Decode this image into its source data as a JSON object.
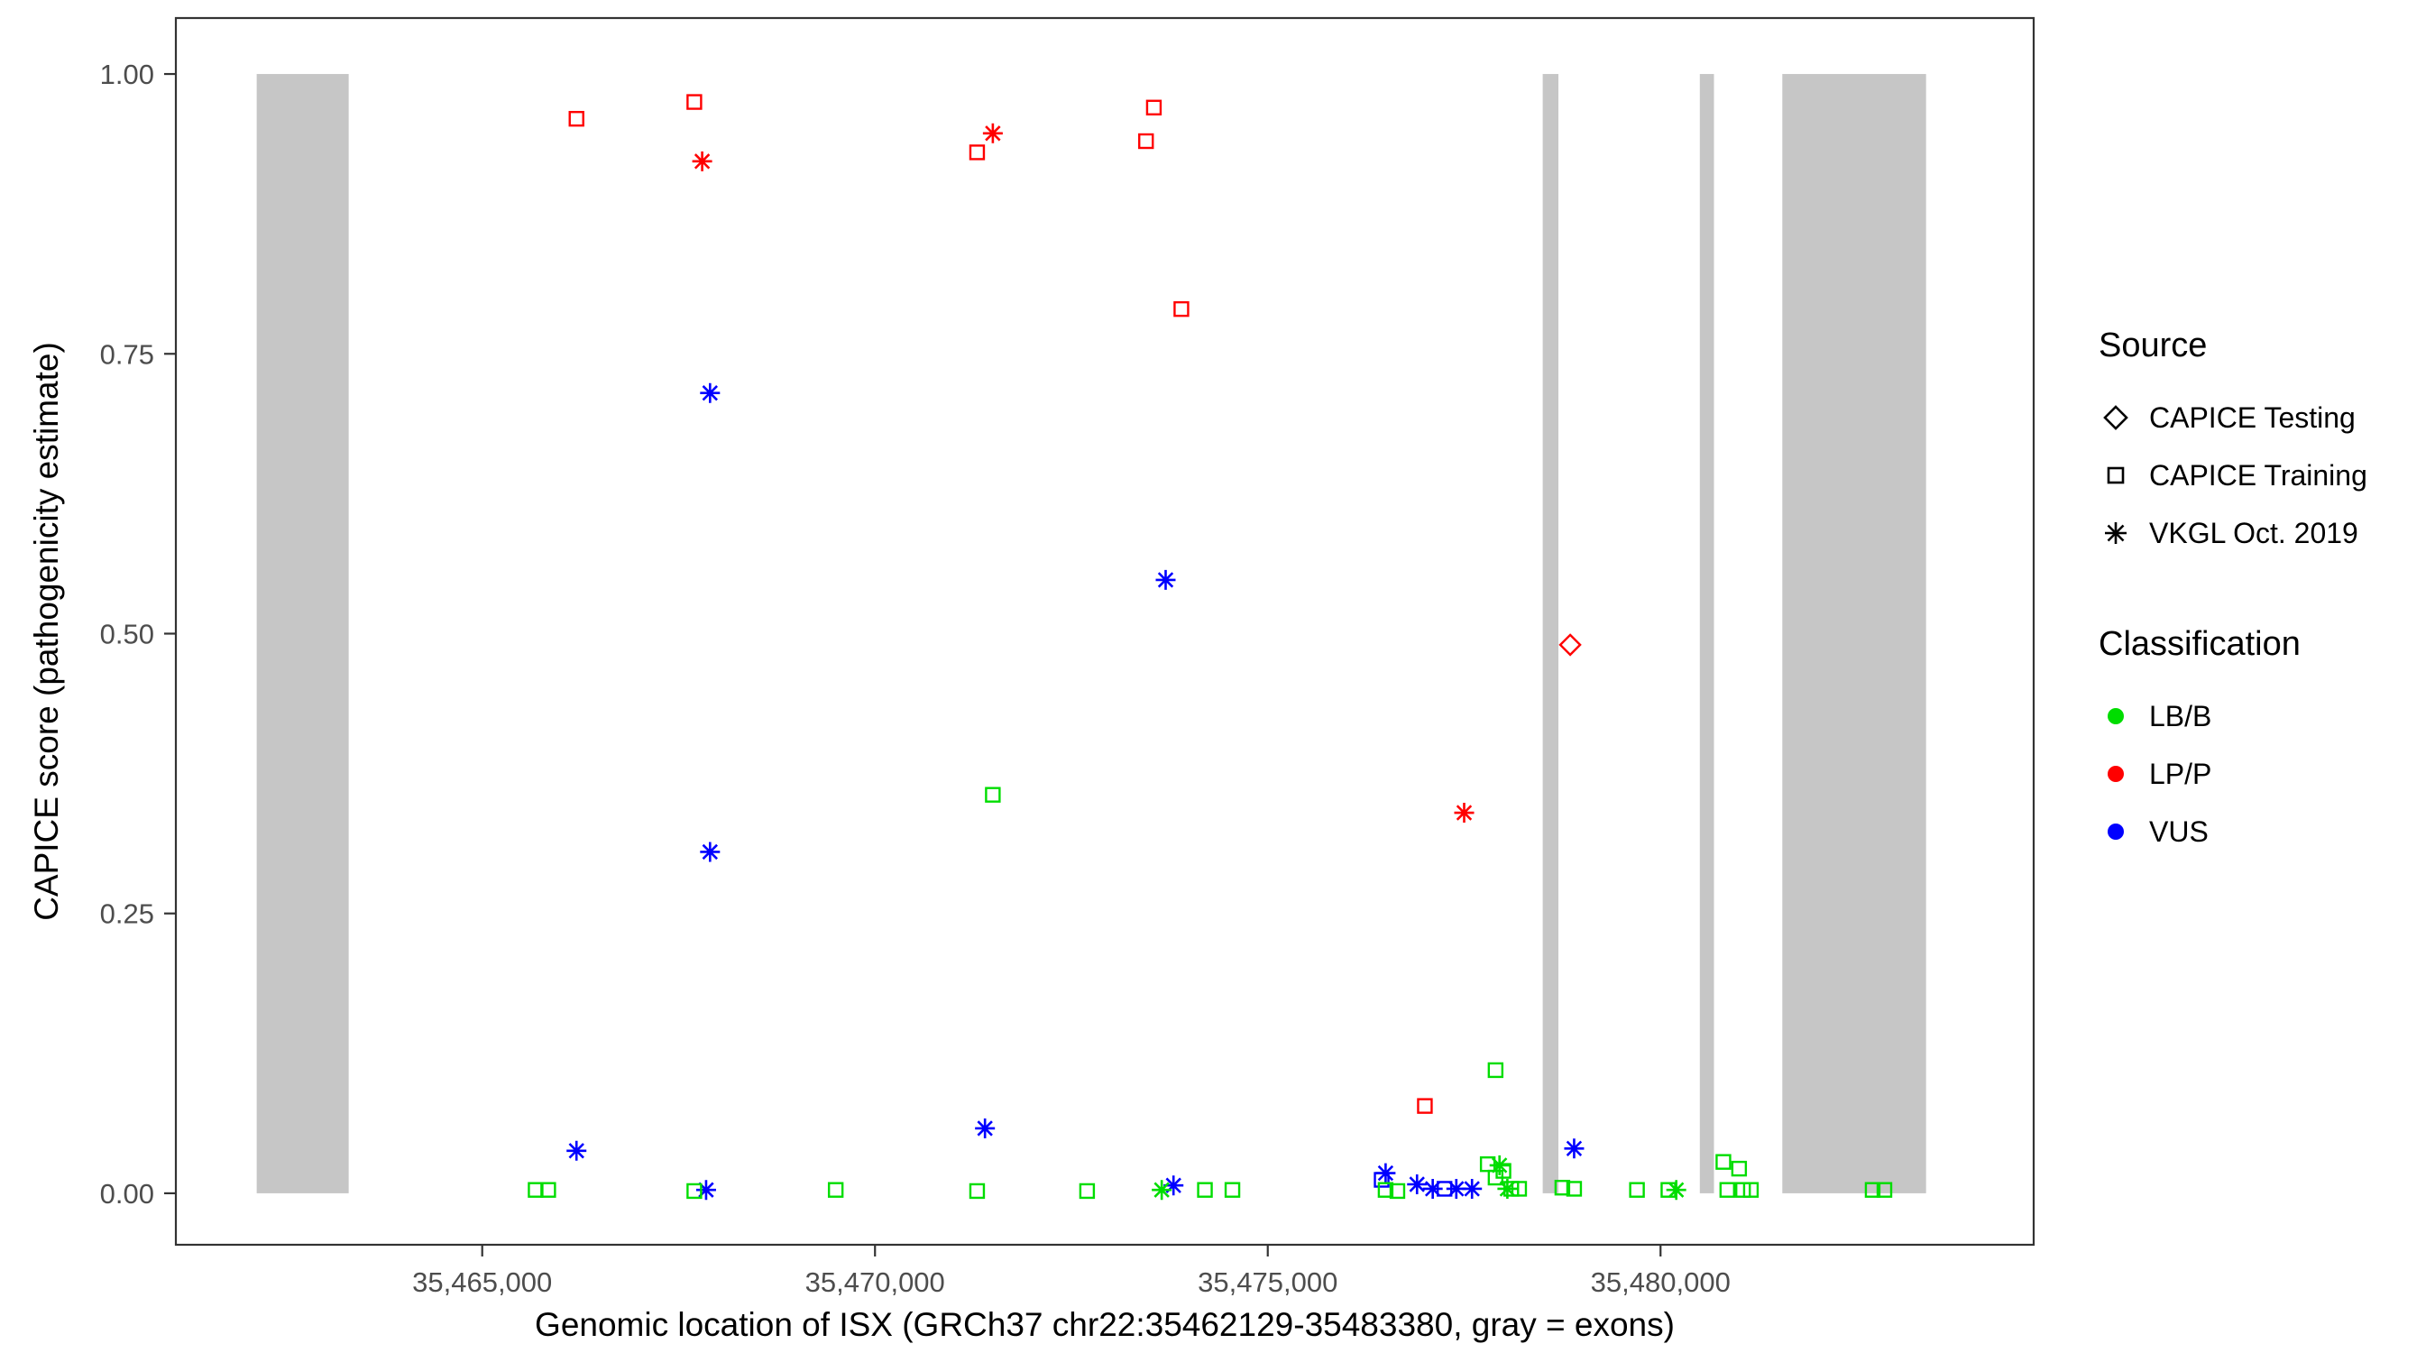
{
  "chart_data": {
    "type": "scatter",
    "title": "",
    "xlabel": "Genomic location of ISX (GRCh37 chr22:35462129-35483380, gray = exons)",
    "ylabel": "CAPICE score (pathogenicity estimate)",
    "xlim": [
      35461100,
      35484750
    ],
    "ylim": [
      -0.046,
      1.05
    ],
    "grid": "off",
    "legend_position": "right",
    "x_ticks": [
      {
        "value": 35465000,
        "label": "35,465,000"
      },
      {
        "value": 35470000,
        "label": "35,470,000"
      },
      {
        "value": 35475000,
        "label": "35,475,000"
      },
      {
        "value": 35480000,
        "label": "35,480,000"
      }
    ],
    "y_ticks": [
      {
        "value": 0.0,
        "label": "0.00"
      },
      {
        "value": 0.25,
        "label": "0.25"
      },
      {
        "value": 0.5,
        "label": "0.50"
      },
      {
        "value": 0.75,
        "label": "0.75"
      },
      {
        "value": 1.0,
        "label": "1.00"
      }
    ],
    "exon_color": "#c6c6c6",
    "exon_bands": [
      [
        35462129,
        35463300
      ],
      [
        35478500,
        35478700
      ],
      [
        35480500,
        35480680
      ],
      [
        35481550,
        35483380
      ]
    ],
    "series": [
      {
        "source": "CAPICE Testing",
        "classification": "LP/P",
        "marker": "diamond",
        "color": "#FF0000",
        "points": [
          [
            35478850,
            0.49
          ]
        ]
      },
      {
        "source": "CAPICE Training",
        "classification": "LP/P",
        "marker": "square",
        "color": "#FF0000",
        "points": [
          [
            35466200,
            0.96
          ],
          [
            35467700,
            0.975
          ],
          [
            35471300,
            0.93
          ],
          [
            35473450,
            0.94
          ],
          [
            35473550,
            0.97
          ],
          [
            35473900,
            0.79
          ],
          [
            35477000,
            0.078
          ]
        ]
      },
      {
        "source": "VKGL Oct. 2019",
        "classification": "LP/P",
        "marker": "asterisk",
        "color": "#FF0000",
        "points": [
          [
            35467800,
            0.922
          ],
          [
            35471500,
            0.947
          ],
          [
            35477500,
            0.34
          ]
        ]
      },
      {
        "source": "CAPICE Training",
        "classification": "VUS",
        "marker": "square",
        "color": "#0000FF",
        "points": [
          [
            35476450,
            0.012
          ],
          [
            35477250,
            0.004
          ]
        ]
      },
      {
        "source": "VKGL Oct. 2019",
        "classification": "VUS",
        "marker": "asterisk",
        "color": "#0000FF",
        "points": [
          [
            35467900,
            0.715
          ],
          [
            35473700,
            0.548
          ],
          [
            35467900,
            0.305
          ],
          [
            35466200,
            0.038
          ],
          [
            35471400,
            0.058
          ],
          [
            35467850,
            0.003
          ],
          [
            35478900,
            0.04
          ],
          [
            35476500,
            0.018
          ],
          [
            35476900,
            0.008
          ],
          [
            35477100,
            0.004
          ],
          [
            35477400,
            0.004
          ],
          [
            35477600,
            0.004
          ],
          [
            35473800,
            0.007
          ]
        ]
      },
      {
        "source": "CAPICE Training",
        "classification": "LB/B",
        "marker": "square",
        "color": "#00DD00",
        "points": [
          [
            35471500,
            0.356
          ],
          [
            35477900,
            0.11
          ],
          [
            35465680,
            0.003
          ],
          [
            35465840,
            0.003
          ],
          [
            35467700,
            0.002
          ],
          [
            35469500,
            0.003
          ],
          [
            35471300,
            0.002
          ],
          [
            35472700,
            0.002
          ],
          [
            35474200,
            0.003
          ],
          [
            35474550,
            0.003
          ],
          [
            35476500,
            0.003
          ],
          [
            35476650,
            0.002
          ],
          [
            35477800,
            0.026
          ],
          [
            35477900,
            0.014
          ],
          [
            35478000,
            0.02
          ],
          [
            35478100,
            0.004
          ],
          [
            35478200,
            0.004
          ],
          [
            35478750,
            0.005
          ],
          [
            35478900,
            0.004
          ],
          [
            35479700,
            0.003
          ],
          [
            35480100,
            0.003
          ],
          [
            35480800,
            0.028
          ],
          [
            35481000,
            0.022
          ],
          [
            35480850,
            0.003
          ],
          [
            35481050,
            0.003
          ],
          [
            35481150,
            0.003
          ],
          [
            35482700,
            0.003
          ],
          [
            35482850,
            0.003
          ]
        ]
      },
      {
        "source": "VKGL Oct. 2019",
        "classification": "LB/B",
        "marker": "asterisk",
        "color": "#00DD00",
        "points": [
          [
            35473650,
            0.003
          ],
          [
            35477950,
            0.025
          ],
          [
            35480200,
            0.003
          ],
          [
            35478050,
            0.004
          ]
        ]
      }
    ]
  },
  "legend": {
    "source_title": "Source",
    "source_items": [
      {
        "label": "CAPICE Testing",
        "marker": "diamond"
      },
      {
        "label": "CAPICE Training",
        "marker": "square"
      },
      {
        "label": "VKGL Oct. 2019",
        "marker": "asterisk"
      }
    ],
    "classification_title": "Classification",
    "classification_items": [
      {
        "label": "LB/B",
        "color": "#00DD00"
      },
      {
        "label": "LP/P",
        "color": "#FF0000"
      },
      {
        "label": "VUS",
        "color": "#0000FF"
      }
    ]
  }
}
